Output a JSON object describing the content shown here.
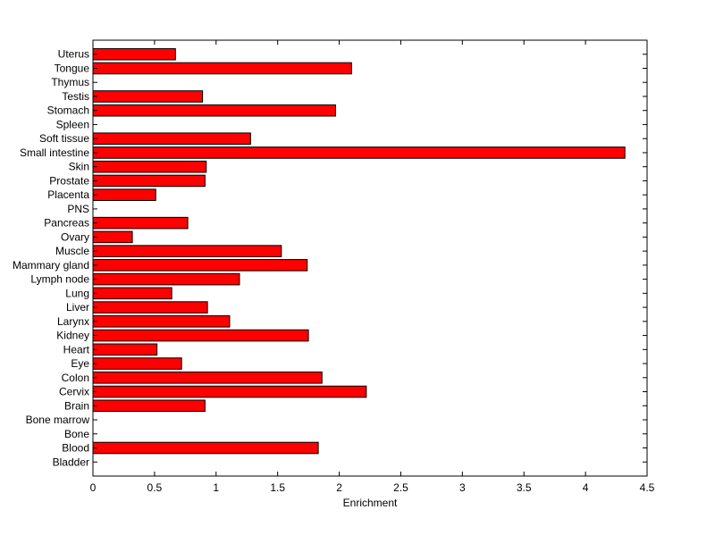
{
  "chart_data": {
    "type": "bar",
    "orientation": "horizontal",
    "categories": [
      "Uterus",
      "Tongue",
      "Thymus",
      "Testis",
      "Stomach",
      "Spleen",
      "Soft tissue",
      "Small intestine",
      "Skin",
      "Prostate",
      "Placenta",
      "PNS",
      "Pancreas",
      "Ovary",
      "Muscle",
      "Mammary gland",
      "Lymph node",
      "Lung",
      "Liver",
      "Larynx",
      "Kidney",
      "Heart",
      "Eye",
      "Colon",
      "Cervix",
      "Brain",
      "Bone marrow",
      "Bone",
      "Blood",
      "Bladder"
    ],
    "values": [
      0.67,
      2.1,
      0,
      0.89,
      1.97,
      0,
      1.28,
      4.32,
      0.92,
      0.91,
      0.51,
      0,
      0.77,
      0.32,
      1.53,
      1.74,
      1.19,
      0.64,
      0.93,
      1.11,
      1.75,
      0.52,
      0.72,
      1.86,
      2.22,
      0.91,
      0,
      0,
      1.83,
      0
    ],
    "xlabel": "Enrichment",
    "xlim": [
      0,
      4.5
    ],
    "xticks": [
      "0",
      "0.5",
      "1",
      "1.5",
      "2",
      "2.5",
      "3",
      "3.5",
      "4",
      "4.5"
    ],
    "bar_color": "#ff0000",
    "grid": false,
    "legend": "none"
  }
}
